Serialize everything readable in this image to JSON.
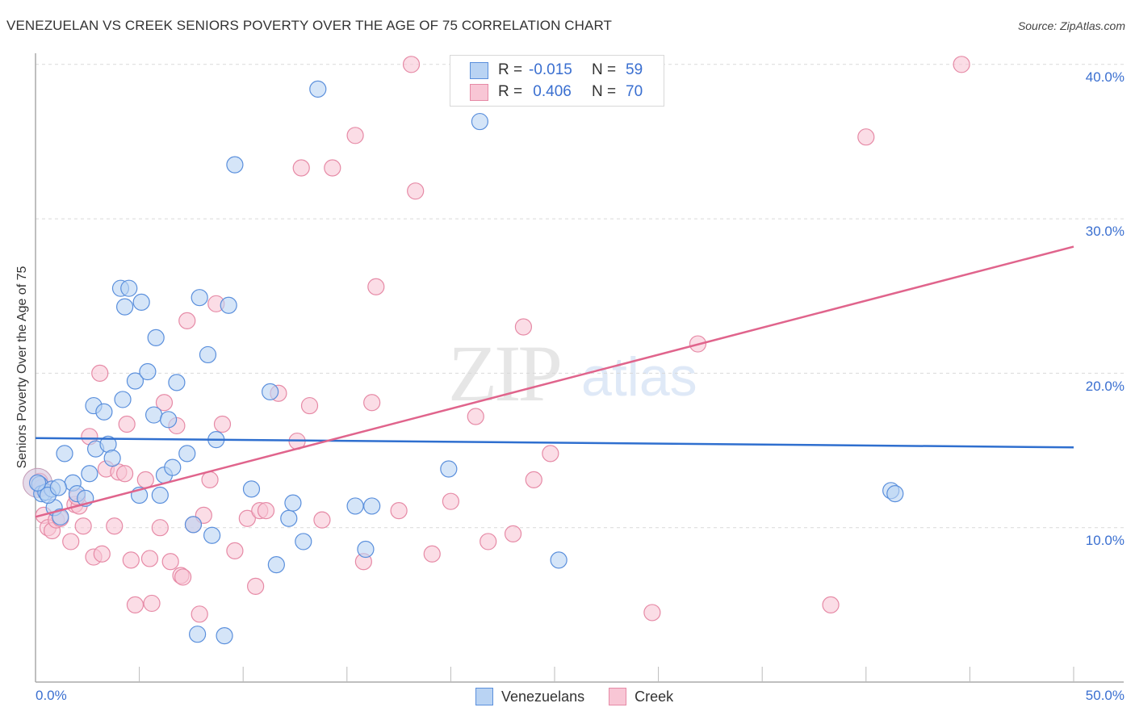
{
  "header": {
    "title": "VENEZUELAN VS CREEK SENIORS POVERTY OVER THE AGE OF 75 CORRELATION CHART",
    "source": "Source: ZipAtlas.com"
  },
  "legend": {
    "rows": [
      {
        "r_label": "R =",
        "r_value": "-0.015",
        "n_label": "N =",
        "n_value": "59"
      },
      {
        "r_label": "R =",
        "r_value": " 0.406",
        "n_label": "N =",
        "n_value": "70"
      }
    ]
  },
  "axes": {
    "y_title": "Seniors Poverty Over the Age of 75",
    "y_ticks": [
      "40.0%",
      "30.0%",
      "20.0%",
      "10.0%"
    ],
    "x_min_label": "0.0%",
    "x_max_label": "50.0%"
  },
  "bottom_legend": {
    "items": [
      {
        "label": "Venezuelans"
      },
      {
        "label": "Creek"
      }
    ]
  },
  "watermark": {
    "zip": "ZIP",
    "atlas": "atlas"
  },
  "colors": {
    "blue_fill": "#b9d3f3",
    "blue_stroke": "#5a8fdc",
    "blue_line": "#2f6fcf",
    "pink_fill": "#f8c6d5",
    "pink_stroke": "#e68aa6",
    "pink_line": "#e0648c",
    "tick_label": "#3a6fd0"
  },
  "chart_data": {
    "type": "scatter",
    "title": "VENEZUELAN VS CREEK SENIORS POVERTY OVER THE AGE OF 75 CORRELATION CHART",
    "xlabel": "",
    "ylabel": "Seniors Poverty Over the Age of 75",
    "xlim": [
      0,
      50
    ],
    "ylim": [
      0,
      42
    ],
    "x_ticks": [
      "0.0%",
      "50.0%"
    ],
    "y_ticks": [
      "10.0%",
      "20.0%",
      "30.0%",
      "40.0%"
    ],
    "grid": "horizontal dashed",
    "legend_position": "top-center and bottom",
    "series": [
      {
        "name": "Venezuelans",
        "R": -0.015,
        "N": 59,
        "trend": {
          "x": [
            0,
            50
          ],
          "y": [
            15.8,
            15.2
          ]
        },
        "points": [
          [
            0.2,
            12.8
          ],
          [
            0.3,
            12.2
          ],
          [
            0.5,
            12.3
          ],
          [
            0.8,
            12.5
          ],
          [
            0.9,
            11.3
          ],
          [
            1.2,
            10.7
          ],
          [
            1.4,
            14.8
          ],
          [
            1.8,
            12.9
          ],
          [
            2.0,
            12.2
          ],
          [
            2.4,
            11.9
          ],
          [
            2.6,
            13.5
          ],
          [
            2.8,
            17.9
          ],
          [
            2.9,
            15.1
          ],
          [
            3.3,
            17.5
          ],
          [
            3.5,
            15.4
          ],
          [
            3.7,
            14.5
          ],
          [
            4.1,
            25.5
          ],
          [
            4.2,
            18.3
          ],
          [
            4.3,
            24.3
          ],
          [
            4.5,
            25.5
          ],
          [
            4.8,
            19.5
          ],
          [
            5.0,
            12.1
          ],
          [
            5.1,
            24.6
          ],
          [
            5.4,
            20.1
          ],
          [
            5.7,
            17.3
          ],
          [
            5.8,
            22.3
          ],
          [
            6.0,
            12.1
          ],
          [
            6.2,
            13.4
          ],
          [
            6.4,
            17.0
          ],
          [
            6.6,
            13.9
          ],
          [
            6.8,
            19.4
          ],
          [
            7.3,
            14.8
          ],
          [
            7.6,
            10.2
          ],
          [
            7.8,
            3.1
          ],
          [
            7.9,
            24.9
          ],
          [
            8.3,
            21.2
          ],
          [
            8.5,
            9.5
          ],
          [
            8.7,
            15.7
          ],
          [
            9.1,
            3.0
          ],
          [
            9.3,
            24.4
          ],
          [
            9.6,
            33.5
          ],
          [
            10.4,
            12.5
          ],
          [
            11.3,
            18.8
          ],
          [
            11.6,
            7.6
          ],
          [
            12.2,
            10.6
          ],
          [
            12.4,
            11.6
          ],
          [
            12.9,
            9.1
          ],
          [
            13.6,
            38.4
          ],
          [
            15.4,
            11.4
          ],
          [
            15.9,
            8.6
          ],
          [
            16.2,
            11.4
          ],
          [
            19.9,
            13.8
          ],
          [
            21.4,
            36.3
          ],
          [
            25.2,
            7.9
          ],
          [
            41.2,
            12.4
          ],
          [
            41.4,
            12.2
          ],
          [
            0.1,
            12.9
          ],
          [
            0.6,
            12.1
          ],
          [
            1.1,
            12.6
          ]
        ]
      },
      {
        "name": "Creek",
        "R": 0.406,
        "N": 70,
        "trend": {
          "x": [
            0,
            50
          ],
          "y": [
            10.7,
            28.2
          ]
        },
        "points": [
          [
            0.2,
            13.0
          ],
          [
            0.4,
            10.8
          ],
          [
            0.6,
            10.0
          ],
          [
            0.8,
            9.8
          ],
          [
            1.0,
            10.5
          ],
          [
            1.2,
            10.6
          ],
          [
            1.7,
            9.1
          ],
          [
            1.9,
            11.5
          ],
          [
            2.1,
            11.4
          ],
          [
            2.3,
            10.1
          ],
          [
            2.6,
            15.9
          ],
          [
            2.8,
            8.1
          ],
          [
            3.1,
            20.0
          ],
          [
            3.2,
            8.3
          ],
          [
            3.4,
            13.8
          ],
          [
            3.8,
            10.1
          ],
          [
            4.0,
            13.6
          ],
          [
            4.3,
            13.5
          ],
          [
            4.4,
            16.7
          ],
          [
            4.6,
            7.9
          ],
          [
            4.8,
            5.0
          ],
          [
            5.3,
            13.1
          ],
          [
            5.5,
            8.0
          ],
          [
            5.6,
            5.1
          ],
          [
            6.0,
            10.0
          ],
          [
            6.2,
            18.1
          ],
          [
            6.5,
            7.8
          ],
          [
            6.8,
            16.6
          ],
          [
            7.0,
            6.9
          ],
          [
            7.1,
            6.8
          ],
          [
            7.3,
            23.4
          ],
          [
            7.6,
            10.2
          ],
          [
            7.9,
            4.4
          ],
          [
            8.1,
            10.8
          ],
          [
            8.4,
            13.1
          ],
          [
            8.7,
            24.5
          ],
          [
            9.0,
            16.7
          ],
          [
            9.6,
            8.5
          ],
          [
            10.2,
            10.6
          ],
          [
            10.6,
            6.2
          ],
          [
            10.8,
            11.1
          ],
          [
            11.1,
            11.1
          ],
          [
            11.7,
            18.7
          ],
          [
            12.6,
            15.6
          ],
          [
            12.8,
            33.3
          ],
          [
            13.2,
            17.9
          ],
          [
            13.8,
            10.5
          ],
          [
            14.3,
            33.3
          ],
          [
            15.4,
            35.4
          ],
          [
            15.8,
            7.8
          ],
          [
            16.2,
            18.1
          ],
          [
            16.4,
            25.6
          ],
          [
            17.5,
            11.1
          ],
          [
            18.1,
            40.0
          ],
          [
            18.3,
            31.8
          ],
          [
            19.1,
            8.3
          ],
          [
            20.0,
            11.7
          ],
          [
            21.2,
            17.2
          ],
          [
            21.8,
            9.1
          ],
          [
            23.0,
            9.6
          ],
          [
            23.5,
            23.0
          ],
          [
            24.0,
            13.1
          ],
          [
            24.8,
            14.8
          ],
          [
            29.7,
            4.5
          ],
          [
            31.9,
            21.9
          ],
          [
            38.3,
            5.0
          ],
          [
            40.0,
            35.3
          ],
          [
            44.6,
            40.0
          ],
          [
            0.3,
            12.6
          ],
          [
            2.0,
            12.0
          ]
        ]
      }
    ]
  }
}
